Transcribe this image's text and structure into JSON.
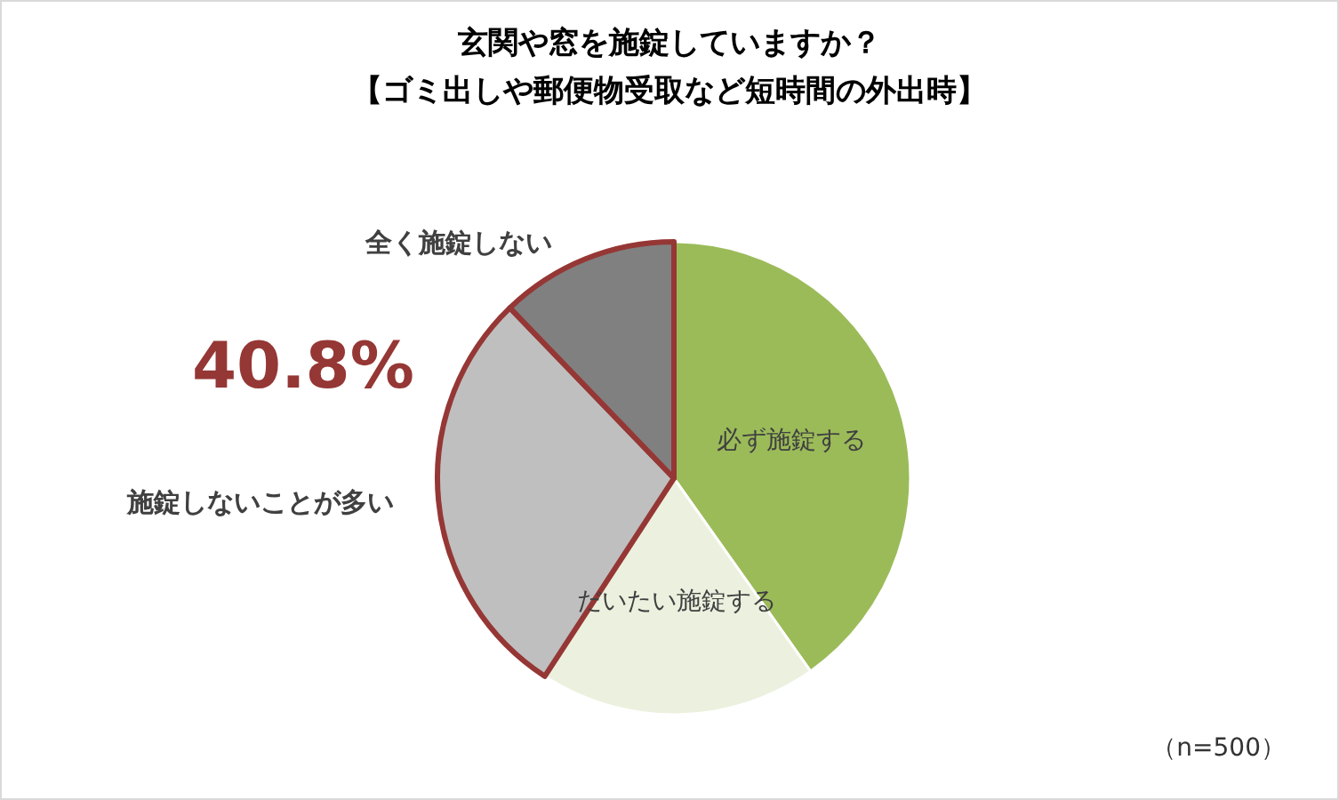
{
  "chart_data": {
    "type": "pie",
    "title": "玄関や窓を施錠していますか？",
    "subtitle": "【ゴミ出しや郵便物受取など短時間の外出時】",
    "categories": [
      "必ず施錠する",
      "だいたい施錠する",
      "施錠しないことが多い",
      "全く施錠しない"
    ],
    "values": [
      40.2,
      19.0,
      28.6,
      12.2
    ],
    "colors": [
      "#9bbb59",
      "#ebf1de",
      "#bfbfbf",
      "#808080"
    ],
    "annotations": [
      "40.8%",
      "（n=500）"
    ],
    "legend": false
  }
}
